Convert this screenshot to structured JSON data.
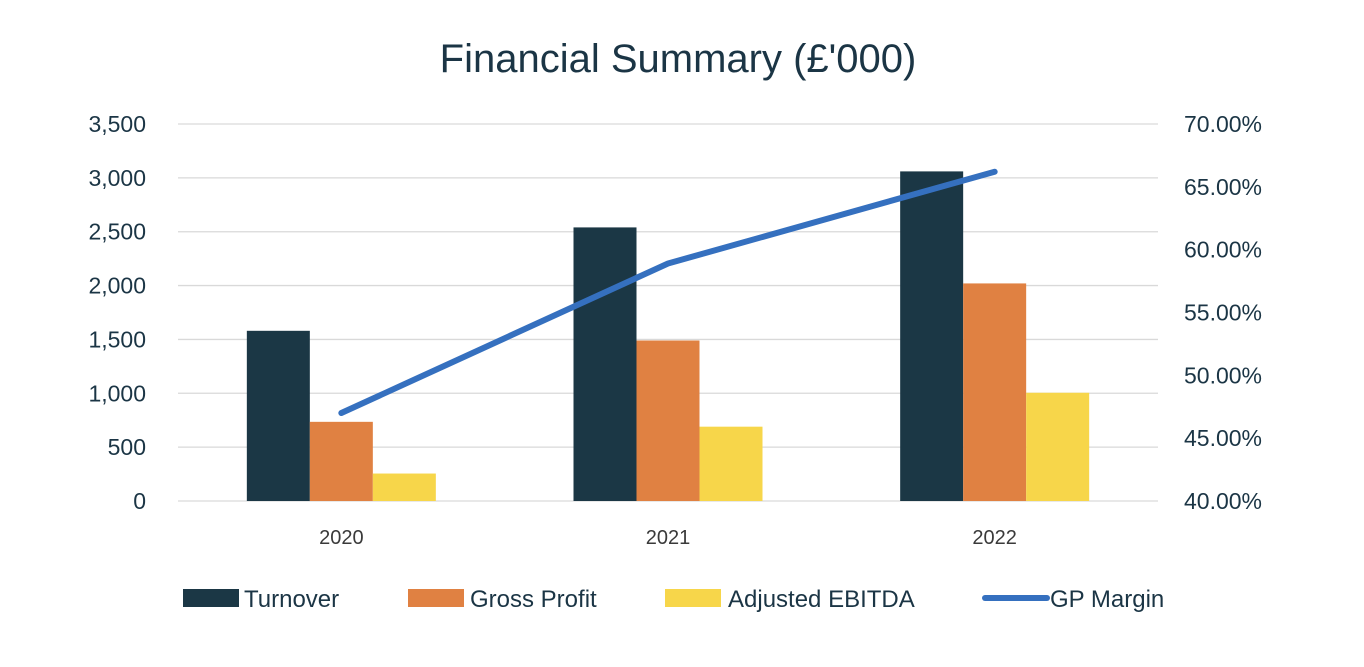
{
  "chart_data": {
    "type": "bar",
    "title": "Financial Summary (£'000)",
    "categories": [
      "2020",
      "2021",
      "2022"
    ],
    "series": [
      {
        "name": "Turnover",
        "type": "bar",
        "axis": "left",
        "color": "#1b3745",
        "values": [
          1580,
          2540,
          3060
        ]
      },
      {
        "name": "Gross Profit",
        "type": "bar",
        "axis": "left",
        "color": "#e08142",
        "values": [
          735,
          1490,
          2020
        ]
      },
      {
        "name": "Adjusted EBITDA",
        "type": "bar",
        "axis": "left",
        "color": "#f7d64a",
        "values": [
          255,
          690,
          1005
        ]
      },
      {
        "name": "GP Margin",
        "type": "line",
        "axis": "right",
        "color": "#3570bf",
        "values": [
          0.47,
          0.589,
          0.662
        ]
      }
    ],
    "y_left": {
      "min": 0,
      "max": 3500,
      "ticks": [
        "0",
        "500",
        "1,000",
        "1,500",
        "2,000",
        "2,500",
        "3,000",
        "3,500"
      ]
    },
    "y_right": {
      "min": 0.4,
      "max": 0.7,
      "ticks": [
        "40.00%",
        "45.00%",
        "50.00%",
        "55.00%",
        "60.00%",
        "65.00%",
        "70.00%"
      ]
    },
    "grid": true,
    "legend_position": "bottom"
  }
}
